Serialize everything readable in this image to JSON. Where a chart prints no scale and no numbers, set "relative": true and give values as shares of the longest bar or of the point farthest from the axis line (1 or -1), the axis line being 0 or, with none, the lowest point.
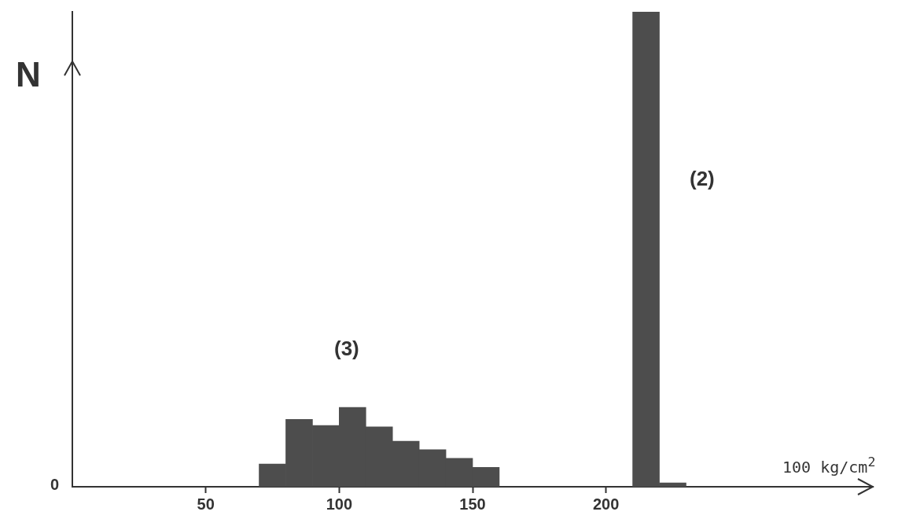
{
  "chart_data": {
    "type": "bar",
    "relative": true,
    "ylabel": "N",
    "xlabel": "100 kg/cm$^{2}$",
    "x": [
      75,
      85,
      95,
      105,
      115,
      125,
      135,
      145,
      155,
      215,
      225
    ],
    "values": [
      0.048,
      0.142,
      0.129,
      0.167,
      0.126,
      0.096,
      0.078,
      0.06,
      0.041,
      1,
      0.008
    ],
    "color": "#4d4d4d",
    "xlim": [
      0,
      300
    ],
    "xticks": [
      50,
      100,
      150,
      200
    ],
    "grid": false,
    "legend": false,
    "annotations": [
      "0",
      "(3)",
      "(2)"
    ]
  }
}
